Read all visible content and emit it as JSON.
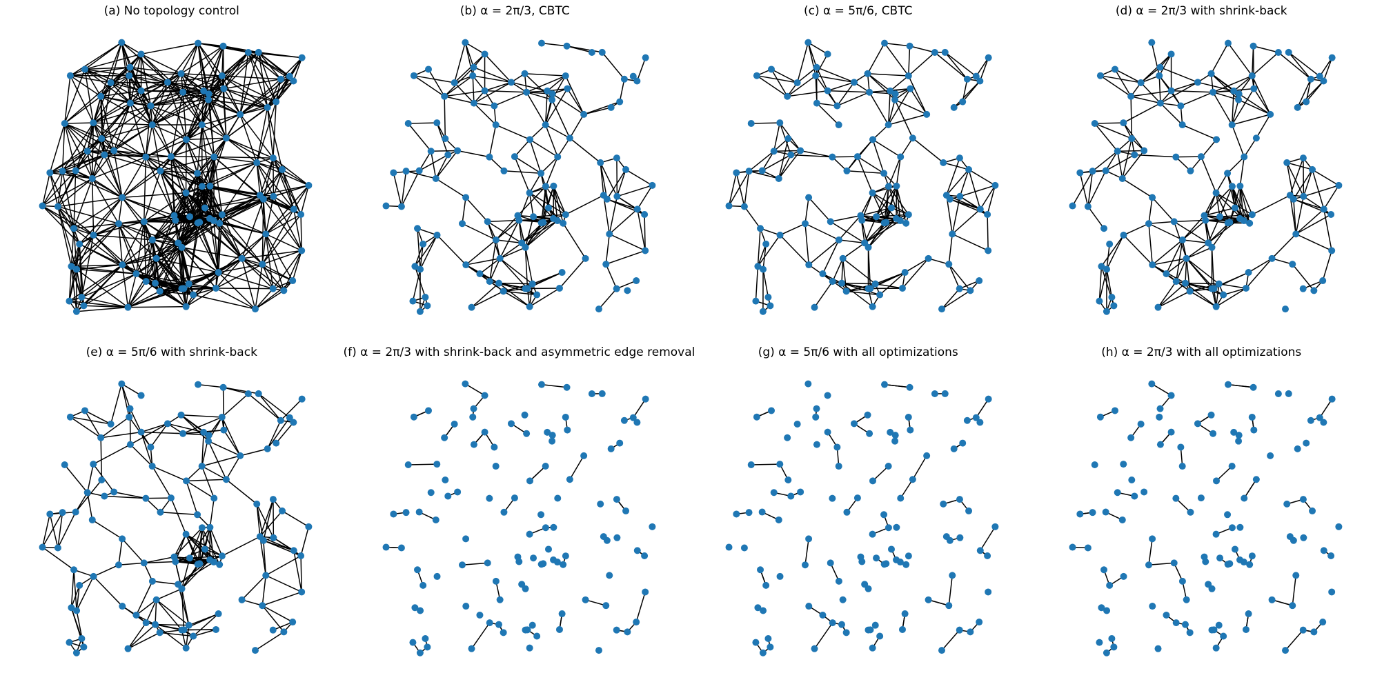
{
  "figure": {
    "node_color": "#1f77b4",
    "edge_color": "#000000",
    "panels": [
      {
        "title": "(a) No topology control",
        "nodes": 110,
        "density": "dense"
      },
      {
        "title": "(b) α = 2π/3, CBTC",
        "nodes": 110,
        "density": "medium"
      },
      {
        "title": "(c) α = 5π/6, CBTC",
        "nodes": 110,
        "density": "medium"
      },
      {
        "title": "(d) α = 2π/3 with shrink-back",
        "nodes": 110,
        "density": "medium"
      },
      {
        "title": "(e) α = 5π/6 with shrink-back",
        "nodes": 110,
        "density": "medium"
      },
      {
        "title": "(f) α = 2π/3 with shrink-back and asymmetric edge removal",
        "nodes": 110,
        "density": "sparse"
      },
      {
        "title": "(g) α = 5π/6 with all optimizations",
        "nodes": 110,
        "density": "sparse"
      },
      {
        "title": "(h) α = 2π/3 with all optimizations",
        "nodes": 110,
        "density": "sparse"
      }
    ]
  }
}
